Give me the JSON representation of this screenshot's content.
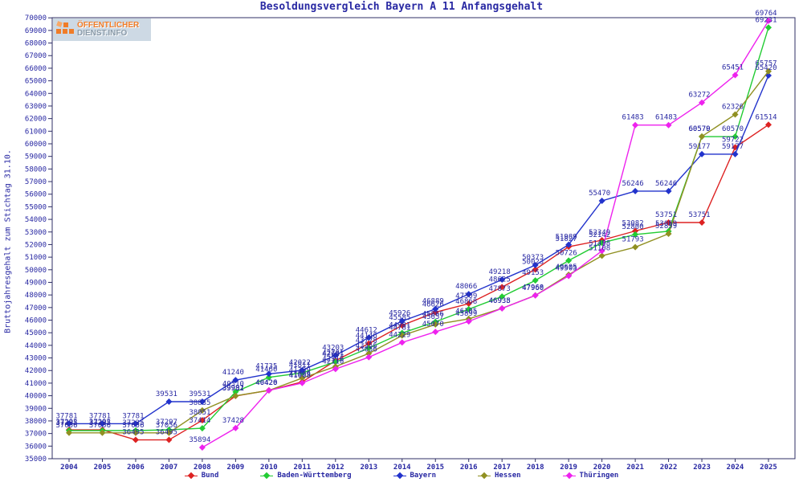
{
  "title": "Besoldungsvergleich Bayern A 11 Anfangsgehalt",
  "logo": {
    "line1": "ÖFFENTLICHER",
    "line2": "DIENST.INFO"
  },
  "colors": {
    "text": "#2929a3",
    "axis": "#2f2f66",
    "background": "#ffffff",
    "logo_orange": "#f07c28",
    "logo_gray": "#8a9aa8"
  },
  "chart_data": {
    "type": "line",
    "title": "Besoldungsvergleich Bayern A 11 Anfangsgehalt",
    "xlabel": "",
    "ylabel": "Bruttojahresgehalt zum Stichtag 31.10.",
    "ylim": [
      35000,
      70000
    ],
    "ytick_step": 1000,
    "grid": false,
    "legend_position": "bottom",
    "x": [
      2004,
      2005,
      2006,
      2007,
      2008,
      2009,
      2010,
      2011,
      2012,
      2013,
      2014,
      2015,
      2016,
      2017,
      2018,
      2019,
      2020,
      2021,
      2022,
      2023,
      2024,
      2025
    ],
    "series": [
      {
        "name": "Bund",
        "color": "#dd2222",
        "values": [
          37292,
          37292,
          36495,
          36495,
          38051,
          39981,
          40426,
          41099,
          42781,
          44146,
          45585,
          46626,
          47309,
          48625,
          50023,
          51827,
          52349,
          53082,
          53751,
          53751,
          59722,
          61514
        ]
      },
      {
        "name": "Baden-Württemberg",
        "color": "#22cc33",
        "values": [
          37235,
          37235,
          37235,
          37297,
          37414,
          40310,
          41460,
          41811,
          42681,
          43778,
          44981,
          45866,
          46868,
          47873,
          49153,
          50726,
          52142,
          52800,
          53059,
          60570,
          60570,
          69231
        ]
      },
      {
        "name": "Bayern",
        "color": "#2233cc",
        "values": [
          37781,
          37781,
          37781,
          39531,
          39531,
          41240,
          41735,
          42022,
          43203,
          44612,
          45926,
          46889,
          48066,
          49218,
          50373,
          51989,
          55470,
          56246,
          56246,
          59177,
          59177,
          65420
        ]
      },
      {
        "name": "Hessen",
        "color": "#909022",
        "values": [
          37056,
          37056,
          37056,
          37056,
          38835,
          39992,
          40420,
          41399,
          42316,
          43356,
          44781,
          45657,
          46105,
          46938,
          47968,
          49605,
          51108,
          51793,
          52859,
          60579,
          62326,
          65757
        ]
      },
      {
        "name": "Thüringen",
        "color": "#ee22ee",
        "values": [
          null,
          null,
          null,
          null,
          35894,
          37428,
          40420,
          41008,
          42116,
          43056,
          44229,
          45070,
          45899,
          46935,
          47960,
          49505,
          51498,
          61483,
          61483,
          63272,
          65451,
          69764
        ]
      }
    ]
  }
}
